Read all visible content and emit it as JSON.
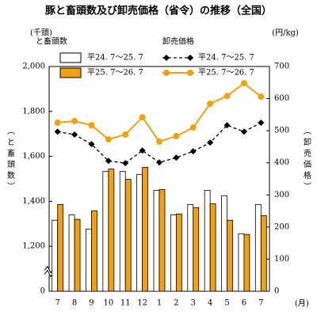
{
  "chart_data": {
    "type": "bar_line",
    "title": "豚と畜頭数及び卸売価格（省令）の推移（全国）",
    "y_unit": "(千頭)",
    "y2_unit": "(円/kg)",
    "x_unit": "(月)",
    "y_label": "（と畜頭数）",
    "y2_label": "（卸売価格）",
    "bar_legend_title": "と畜頭数",
    "line_legend_title": "卸売価格",
    "categories": [
      "7",
      "8",
      "9",
      "10",
      "11",
      "12",
      "1",
      "2",
      "3",
      "4",
      "5",
      "6",
      "7"
    ],
    "ylim": [
      0,
      2000
    ],
    "yticks": [
      0,
      {
        "value": 1200,
        "label": "1,200"
      },
      {
        "value": 1400,
        "label": "1,400"
      },
      {
        "value": 1600,
        "label": "1,600"
      },
      {
        "value": 1800,
        "label": "1,800"
      },
      {
        "value": 2000,
        "label": "2,000"
      }
    ],
    "axis_break": true,
    "y2lim": [
      0,
      700
    ],
    "y2ticks": [
      0,
      100,
      200,
      300,
      400,
      500,
      600,
      700
    ],
    "series": [
      {
        "name": "平24. 7～25. 7",
        "type": "bar",
        "color": "#ffffff",
        "values": [
          1316,
          1340,
          1277,
          1533,
          1533,
          1520,
          1449,
          1340,
          1386,
          1449,
          1425,
          1256,
          1386
        ]
      },
      {
        "name": "平25. 7～26. 7",
        "type": "bar",
        "color": "#f0a10f",
        "values": [
          1386,
          1320,
          1358,
          1544,
          1498,
          1551,
          1453,
          1344,
          1372,
          1389,
          1316,
          1253,
          1337
        ]
      },
      {
        "name": "平24. 7～25. 7",
        "type": "line",
        "axis": "y2",
        "marker": "diamond",
        "color": "#000000",
        "values": [
          497,
          488,
          458,
          406,
          399,
          438,
          401,
          416,
          436,
          463,
          517,
          497,
          525
        ]
      },
      {
        "name": "平25. 7～26. 7",
        "type": "line",
        "axis": "y2",
        "marker": "circle",
        "color": "#f0a10f",
        "values": [
          525,
          530,
          517,
          473,
          488,
          542,
          466,
          483,
          510,
          584,
          608,
          648,
          606
        ]
      }
    ]
  }
}
